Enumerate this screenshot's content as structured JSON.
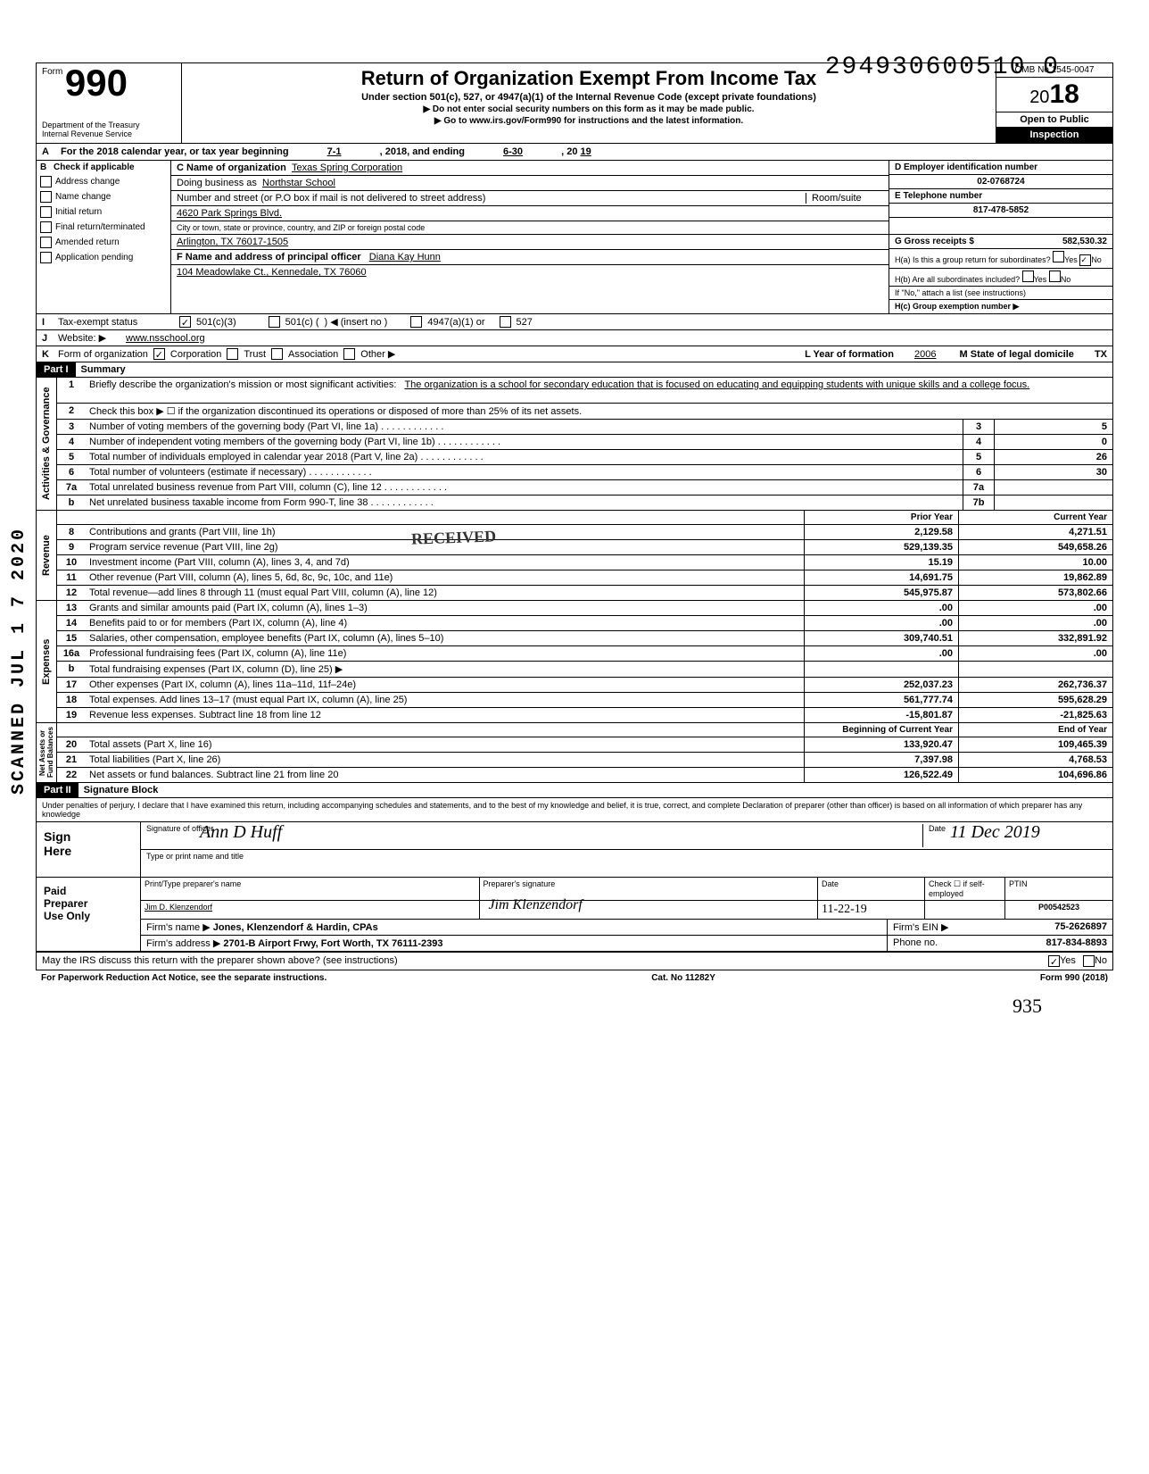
{
  "doc_id": "294930600510  0",
  "form": {
    "form_label": "Form",
    "number": "990",
    "dept": "Department of the Treasury",
    "irs": "Internal Revenue Service"
  },
  "title": {
    "main": "Return of Organization Exempt From Income Tax",
    "sub": "Under section 501(c), 527, or 4947(a)(1) of the Internal Revenue Code (except private foundations)",
    "note1": "▶ Do not enter social security numbers on this form as it may be made public.",
    "note2": "▶ Go to www.irs.gov/Form990 for instructions and the latest information."
  },
  "year_box": {
    "omb": "OMB No 1545-0047",
    "year_prefix": "20",
    "year_suffix": "18",
    "open": "Open to Public",
    "insp": "Inspection"
  },
  "row_a": {
    "text": "For the 2018 calendar year, or tax year beginning",
    "begin": "7-1",
    "mid": ", 2018, and ending",
    "end": "6-30",
    "y": ", 20",
    "end_year": "19"
  },
  "row_b_label": "Check if applicable",
  "checks": [
    "Address change",
    "Name change",
    "Initial return",
    "Final return/terminated",
    "Amended return",
    "Application pending"
  ],
  "entity": {
    "c_label": "C Name of organization",
    "name": "Texas Spring Corporation",
    "dba_label": "Doing business as",
    "dba": "Northstar School",
    "street_label": "Number and street (or P.O  box if mail is not delivered to street address)",
    "room_label": "Room/suite",
    "street": "4620 Park Springs Blvd.",
    "city_label": "City or town, state or province, country, and ZIP or foreign postal code",
    "city": "Arlington, TX  76017-1505",
    "f_label": "F Name and address of principal officer",
    "officer": "Diana Kay Hunn",
    "officer_addr": "104 Meadowlake Ct., Kennedale, TX  76060"
  },
  "right": {
    "d_label": "D Employer identification number",
    "ein": "02-0768724",
    "e_label": "E Telephone number",
    "phone": "817-478-5852",
    "g_label": "G Gross receipts $",
    "gross": "582,530.32",
    "ha": "H(a) Is this a group return for subordinates?",
    "hb": "H(b) Are all subordinates included?",
    "h_note": "If \"No,\" attach a list  (see instructions)",
    "hc": "H(c) Group exemption number ▶",
    "yes": "Yes",
    "no": "No"
  },
  "row_i": {
    "label": "Tax-exempt status",
    "o1": "501(c)(3)",
    "o2": "501(c) (",
    "o3": ") ◀ (insert no )",
    "o4": "4947(a)(1) or",
    "o5": "527"
  },
  "row_j": {
    "label": "Website: ▶",
    "val": "www.nsschool.org"
  },
  "row_k": {
    "label": "Form of organization",
    "o1": "Corporation",
    "o2": "Trust",
    "o3": "Association",
    "o4": "Other ▶",
    "l_label": "L Year of formation",
    "l_val": "2006",
    "m_label": "M State of legal domicile",
    "m_val": "TX"
  },
  "parts": {
    "p1": "Part I",
    "p1t": "Summary",
    "p2": "Part II",
    "p2t": "Signature Block"
  },
  "sidebars": {
    "a": "Activities & Governance",
    "b": "Revenue",
    "c": "Expenses",
    "d": "Net Assets or\nFund Balances"
  },
  "s1": {
    "n": "1",
    "desc": "Briefly describe the organization's mission or most significant activities:",
    "val": "The organization is a school for secondary education that is focused on educating and equipping students with unique skills and a college focus."
  },
  "s2": {
    "n": "2",
    "desc": "Check this box ▶ ☐ if the organization discontinued its operations or disposed of more than 25% of its net assets."
  },
  "lines_single": [
    {
      "n": "3",
      "desc": "Number of voting members of the governing body (Part VI, line 1a)",
      "box": "3",
      "val": "5"
    },
    {
      "n": "4",
      "desc": "Number of independent voting members of the governing body (Part VI, line 1b)",
      "box": "4",
      "val": "0"
    },
    {
      "n": "5",
      "desc": "Total number of individuals employed in calendar year 2018 (Part V, line 2a)",
      "box": "5",
      "val": "26"
    },
    {
      "n": "6",
      "desc": "Total number of volunteers (estimate if necessary)",
      "box": "6",
      "val": "30"
    },
    {
      "n": "7a",
      "desc": "Total unrelated business revenue from Part VIII, column (C), line 12",
      "box": "7a",
      "val": ""
    },
    {
      "n": "b",
      "desc": "Net unrelated business taxable income from Form 990-T, line 38",
      "box": "7b",
      "val": ""
    }
  ],
  "col_headers": {
    "prior": "Prior Year",
    "current": "Current Year",
    "boy": "Beginning of Current Year",
    "eoy": "End of Year"
  },
  "revenue": [
    {
      "n": "8",
      "desc": "Contributions and grants (Part VIII, line 1h)",
      "c1": "2,129.58",
      "c2": "4,271.51"
    },
    {
      "n": "9",
      "desc": "Program service revenue (Part VIII, line 2g)",
      "c1": "529,139.35",
      "c2": "549,658.26"
    },
    {
      "n": "10",
      "desc": "Investment income (Part VIII, column (A), lines 3, 4, and 7d)",
      "c1": "15.19",
      "c2": "10.00"
    },
    {
      "n": "11",
      "desc": "Other revenue (Part VIII, column (A), lines 5, 6d, 8c, 9c, 10c, and 11e)",
      "c1": "14,691.75",
      "c2": "19,862.89"
    },
    {
      "n": "12",
      "desc": "Total revenue—add lines 8 through 11 (must equal Part VIII, column (A), line 12)",
      "c1": "545,975.87",
      "c2": "573,802.66"
    }
  ],
  "expenses": [
    {
      "n": "13",
      "desc": "Grants and similar amounts paid (Part IX, column (A), lines 1–3)",
      "c1": ".00",
      "c2": ".00"
    },
    {
      "n": "14",
      "desc": "Benefits paid to or for members (Part IX, column (A), line 4)",
      "c1": ".00",
      "c2": ".00"
    },
    {
      "n": "15",
      "desc": "Salaries, other compensation, employee benefits (Part IX, column (A), lines 5–10)",
      "c1": "309,740.51",
      "c2": "332,891.92"
    },
    {
      "n": "16a",
      "desc": "Professional fundraising fees (Part IX, column (A), line 11e)",
      "c1": ".00",
      "c2": ".00"
    },
    {
      "n": "b",
      "desc": "Total fundraising expenses (Part IX, column (D), line 25) ▶",
      "c1": "",
      "c2": ""
    },
    {
      "n": "17",
      "desc": "Other expenses (Part IX, column (A), lines 11a–11d, 11f–24e)",
      "c1": "252,037.23",
      "c2": "262,736.37"
    },
    {
      "n": "18",
      "desc": "Total expenses. Add lines 13–17 (must equal Part IX, column (A), line 25)",
      "c1": "561,777.74",
      "c2": "595,628.29"
    },
    {
      "n": "19",
      "desc": "Revenue less expenses. Subtract line 18 from line 12",
      "c1": "-15,801.87",
      "c2": "-21,825.63"
    }
  ],
  "netassets": [
    {
      "n": "20",
      "desc": "Total assets (Part X, line 16)",
      "c1": "133,920.47",
      "c2": "109,465.39"
    },
    {
      "n": "21",
      "desc": "Total liabilities (Part X, line 26)",
      "c1": "7,397.98",
      "c2": "4,768.53"
    },
    {
      "n": "22",
      "desc": "Net assets or fund balances. Subtract line 21 from line 20",
      "c1": "126,522.49",
      "c2": "104,696.86"
    }
  ],
  "perjury": "Under penalties of perjury, I declare that I have examined this return, including accompanying schedules and statements, and to the best of my knowledge and belief, it is true, correct, and complete  Declaration of preparer (other than officer) is based on all information of which preparer has any knowledge",
  "sign": {
    "here": "Sign\nHere",
    "sig_label": "Signature of officer",
    "date_label": "Date",
    "date_val": "11 Dec 2019",
    "type_label": "Type or print name and title"
  },
  "paid": {
    "label": "Paid\nPreparer\nUse Only",
    "h1": "Print/Type preparer's name",
    "h2": "Preparer's signature",
    "h3": "Date",
    "h4": "Check ☐ if self-employed",
    "h5": "PTIN",
    "name": "Jim D. Klenzendorf",
    "date": "11-22-19",
    "ptin": "P00542523",
    "firm_label": "Firm's name    ▶",
    "firm": "Jones, Klenzendorf & Hardin, CPAs",
    "ein_label": "Firm's EIN  ▶",
    "ein": "75-2626897",
    "addr_label": "Firm's address ▶",
    "addr": "2701-B Airport Frwy, Fort Worth, TX  76111-2393",
    "phone_label": "Phone no.",
    "phone": "817-834-8893"
  },
  "irs_discuss": "May the IRS discuss this return with the preparer shown above? (see instructions)",
  "paperwork": "For Paperwork Reduction Act Notice, see the separate instructions.",
  "cat": "Cat. No  11282Y",
  "form_footer": "Form 990 (2018)",
  "scanned": "SCANNED  JUL 1 7 2020",
  "received": "RECEIVED",
  "handnum": "935",
  "letters": {
    "A": "A",
    "B": "B",
    "I": "I",
    "J": "J",
    "K": "K"
  }
}
